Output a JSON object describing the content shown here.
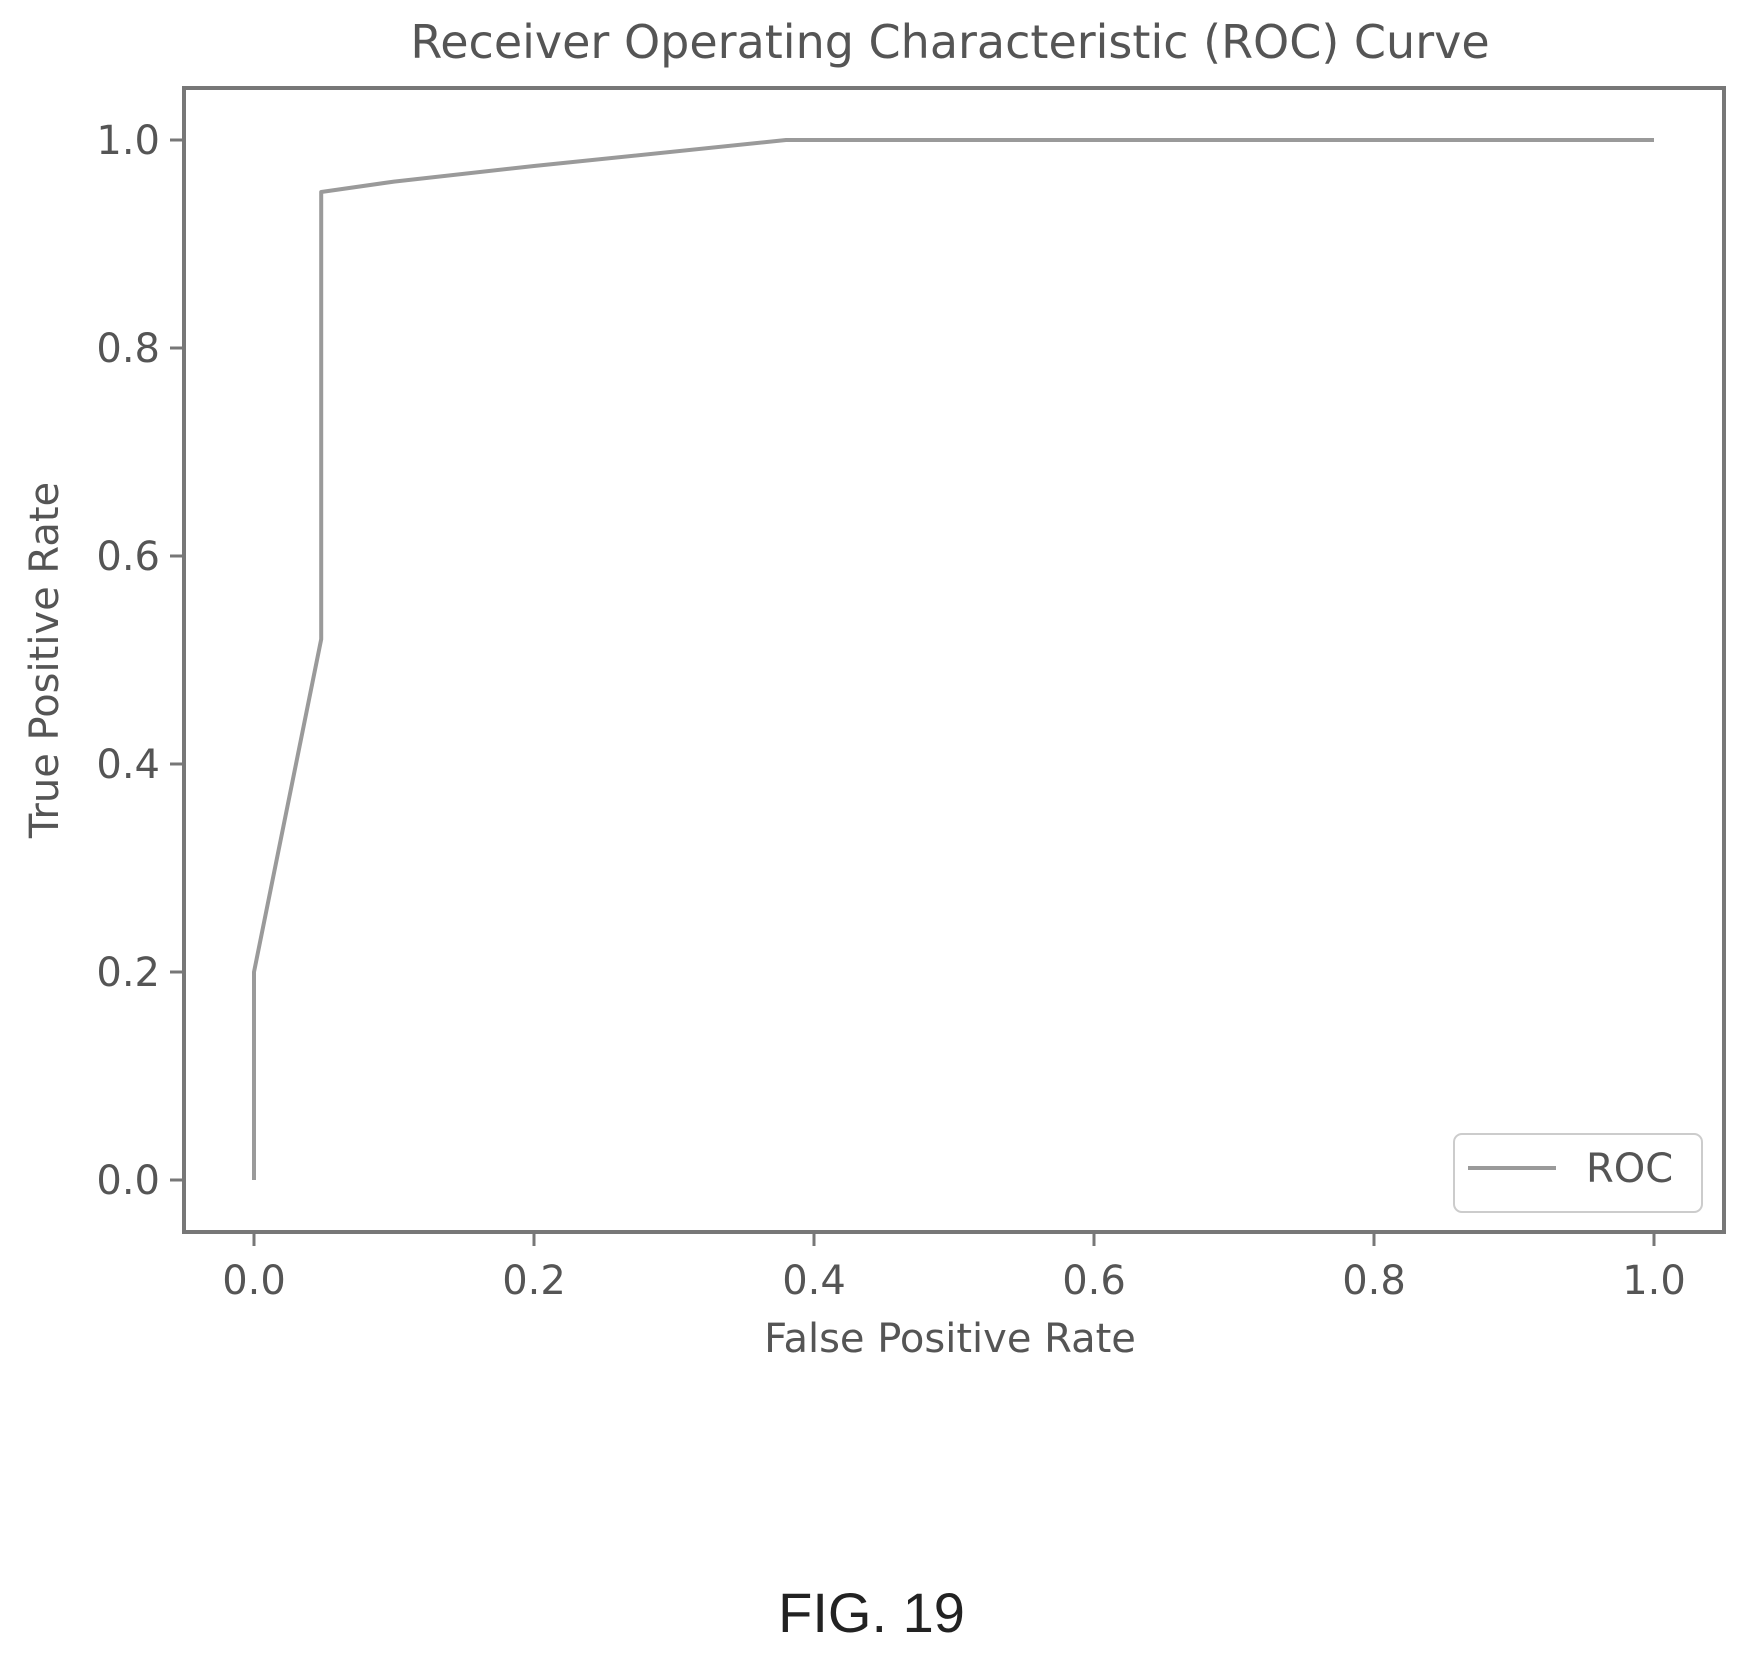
{
  "chart_data": {
    "type": "line",
    "title": "Receiver Operating Characteristic (ROC) Curve",
    "xlabel": "False Positive Rate",
    "ylabel": "True Positive Rate",
    "xlim": [
      -0.05,
      1.05
    ],
    "ylim": [
      -0.05,
      1.05
    ],
    "xticks": [
      0.0,
      0.2,
      0.4,
      0.6,
      0.8,
      1.0
    ],
    "xtick_labels": [
      "0.0",
      "0.2",
      "0.4",
      "0.6",
      "0.8",
      "1.0"
    ],
    "yticks": [
      0.0,
      0.2,
      0.4,
      0.6,
      0.8,
      1.0
    ],
    "ytick_labels": [
      "0.0",
      "0.2",
      "0.4",
      "0.6",
      "0.8",
      "1.0"
    ],
    "grid": false,
    "legend": {
      "position": "lower-right"
    },
    "series": [
      {
        "name": "ROC",
        "color": "#9a9a9a",
        "x": [
          0.0,
          0.0,
          0.048,
          0.048,
          0.1,
          0.2,
          0.38,
          1.0
        ],
        "y": [
          0.0,
          0.2,
          0.52,
          0.95,
          0.96,
          0.975,
          1.0,
          1.0
        ]
      }
    ]
  },
  "caption": "FIG. 19"
}
